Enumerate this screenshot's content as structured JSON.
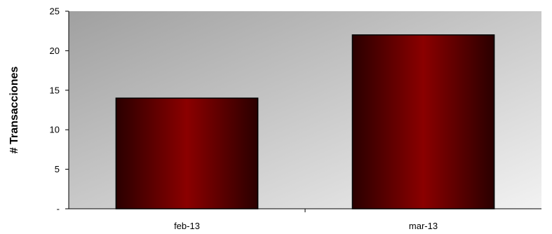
{
  "chart_data": {
    "type": "bar",
    "title": "",
    "xlabel": "",
    "ylabel": "# Transacciones",
    "categories": [
      "feb-13",
      "mar-13"
    ],
    "values": [
      14,
      22
    ],
    "ylim": [
      0,
      25
    ],
    "yticks": [
      {
        "value": 0,
        "label": "-"
      },
      {
        "value": 5,
        "label": "5"
      },
      {
        "value": 10,
        "label": "10"
      },
      {
        "value": 15,
        "label": "15"
      },
      {
        "value": 20,
        "label": "20"
      },
      {
        "value": 25,
        "label": "25"
      }
    ],
    "grid": false,
    "legend": "none",
    "colors": {
      "bar_dark": "#2a0000",
      "bar_mid": "#8b0000",
      "plot_bg_dark": "#a0a0a0",
      "plot_bg_light": "#f2f2f2"
    }
  }
}
